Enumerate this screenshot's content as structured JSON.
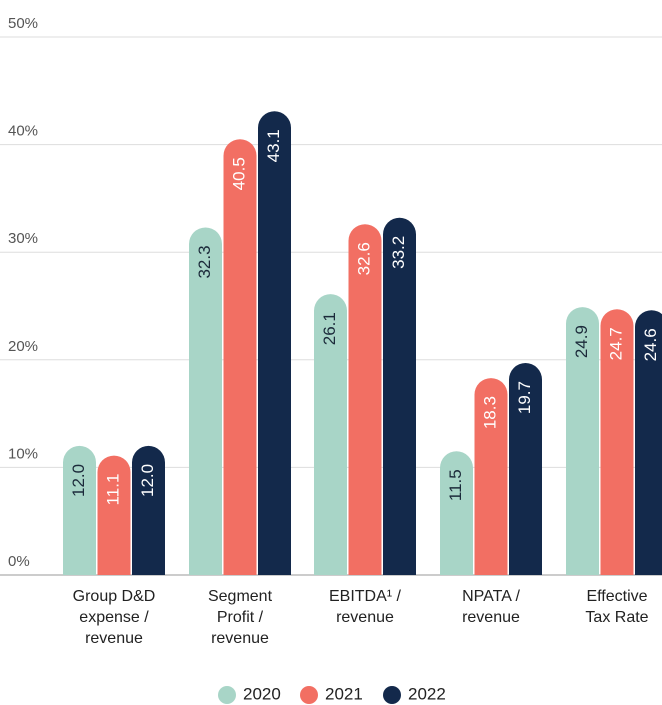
{
  "chart_data": {
    "type": "bar",
    "categories": [
      [
        "Group D&D",
        "expense /",
        "revenue"
      ],
      [
        "Segment",
        "Profit /",
        "revenue"
      ],
      [
        "EBITDA¹ /",
        "revenue"
      ],
      [
        "NPATA /",
        "revenue"
      ],
      [
        "Effective",
        "Tax Rate"
      ]
    ],
    "series": [
      {
        "name": "2020",
        "color": "#a8d5c7",
        "values": [
          12.0,
          32.3,
          26.1,
          11.5,
          24.9
        ],
        "value_labels": [
          "12.0",
          "32.3",
          "26.1",
          "11.5",
          "24.9"
        ]
      },
      {
        "name": "2021",
        "color": "#f26f63",
        "values": [
          11.1,
          40.5,
          32.6,
          18.3,
          24.7
        ],
        "value_labels": [
          "11.1",
          "40.5",
          "32.6",
          "18.3",
          "24.7"
        ]
      },
      {
        "name": "2022",
        "color": "#13294b",
        "values": [
          12.0,
          43.1,
          33.2,
          19.7,
          24.6
        ],
        "value_labels": [
          "12.0",
          "43.1",
          "33.2",
          "19.7",
          "24.6"
        ]
      }
    ],
    "ylim": [
      0,
      50
    ],
    "yticks": [
      {
        "value": 0,
        "label": "0%"
      },
      {
        "value": 10,
        "label": "10%"
      },
      {
        "value": 20,
        "label": "20%"
      },
      {
        "value": 30,
        "label": "30%"
      },
      {
        "value": 40,
        "label": "40%"
      },
      {
        "value": 50,
        "label": "50%"
      }
    ],
    "grid": true,
    "legend": "bottom"
  }
}
